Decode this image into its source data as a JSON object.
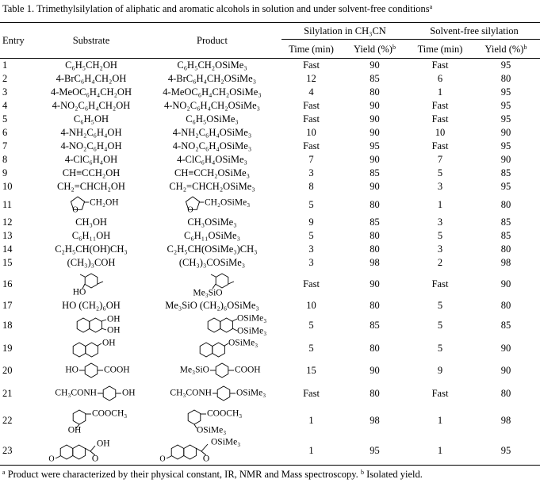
{
  "caption": {
    "text": "Table 1.  Trimethylsilylation of aliphatic and aromatic alcohols in solution and under solvent-free conditions",
    "sup": "a"
  },
  "columns": {
    "entry": "Entry",
    "substrate": "Substrate",
    "product": "Product",
    "group1": {
      "title": "Silylation in CH₃CN",
      "time": "Time (min)",
      "yield": "Yield (%)",
      "yield_sup": "b"
    },
    "group2": {
      "title": "Solvent-free silylation",
      "time": "Time (min)",
      "yield": "Yield (%)",
      "yield_sup": "b"
    }
  },
  "rows": [
    [
      1,
      "C₆H₅CH₂OH",
      "C₆H₅CH₂OSiMe₃",
      "Fast",
      90,
      "Fast",
      95
    ],
    [
      2,
      "4-BrC₆H₄CH₂OH",
      "4-BrC₆H₄CH₂OSiMe₃",
      12,
      85,
      6,
      80
    ],
    [
      3,
      "4-MeOC₆H₄CH₂OH",
      "4-MeOC₆H₄CH₂OSiMe₃",
      4,
      80,
      1,
      95
    ],
    [
      4,
      "4-NO₂C₆H₄CH₂OH",
      "4-NO₂C₆H₄CH₂OSiMe₃",
      "Fast",
      90,
      "Fast",
      95
    ],
    [
      5,
      "C₆H₅OH",
      "C₆H₅OSiMe₃",
      "Fast",
      90,
      "Fast",
      95
    ],
    [
      6,
      "4-NH₂C₆H₄OH",
      "4-NH₂C₆H₄OSiMe₃",
      10,
      90,
      10,
      90
    ],
    [
      7,
      "4-NO₂C₆H₄OH",
      "4-NO₂C₆H₄OSiMe₃",
      "Fast",
      95,
      "Fast",
      95
    ],
    [
      8,
      "4-ClC₆H₄OH",
      "4-ClC₆H₄OSiMe₃",
      7,
      90,
      7,
      90
    ],
    [
      9,
      "CH≡CCH₂OH",
      "CH≡CCH₂OSiMe₃",
      3,
      85,
      5,
      85
    ],
    [
      10,
      "CH₂=CHCH₂OH",
      "CH₂=CHCH₂OSiMe₃",
      8,
      90,
      3,
      95
    ],
    [
      11,
      [
        "O",
        "CH₂OH"
      ],
      [
        "O",
        "CH₂OSiMe₃"
      ],
      5,
      80,
      1,
      80
    ],
    [
      12,
      "CH₃OH",
      "CH₃OSiMe₃",
      9,
      85,
      3,
      85
    ],
    [
      13,
      "C₆H₁₁OH",
      "C₆H₁₁OSiMe₃",
      5,
      80,
      5,
      85
    ],
    [
      14,
      "C₂H₅CH(OH)CH₃",
      "C₂H₅CH(OSiMe₃)CH₃",
      3,
      80,
      3,
      80
    ],
    [
      15,
      "(CH₃)₃COH",
      "(CH₃)₃COSiMe₃",
      3,
      98,
      2,
      98
    ],
    [
      16,
      [
        "HO"
      ],
      [
        "Me₃SiO"
      ],
      "Fast",
      90,
      "Fast",
      90
    ],
    [
      17,
      "HO (CH₂)₆OH",
      "Me₃SiO (CH₂)₆OSiMe₃",
      10,
      80,
      5,
      80
    ],
    [
      18,
      [
        "OH",
        "OH"
      ],
      [
        "OSiMe₃",
        "OSiMe₃"
      ],
      5,
      85,
      5,
      85
    ],
    [
      19,
      [
        "OH"
      ],
      [
        "OSiMe₃"
      ],
      5,
      80,
      5,
      90
    ],
    [
      20,
      [
        "HO",
        "COOH"
      ],
      [
        "Me₃SiO",
        "COOH"
      ],
      15,
      90,
      9,
      90
    ],
    [
      21,
      [
        "CH₃CONH",
        "OH"
      ],
      [
        "CH₃CONH",
        "OSiMe₃"
      ],
      "Fast",
      80,
      "Fast",
      80
    ],
    [
      22,
      [
        "COOCH₃",
        "OH"
      ],
      [
        "COOCH₃",
        "OSiMe₃"
      ],
      1,
      98,
      1,
      98
    ],
    [
      23,
      [
        "O",
        "OH",
        "O"
      ],
      [
        "O",
        "OSiMe₃",
        "O"
      ],
      1,
      95,
      1,
      95
    ]
  ],
  "footnotes": [
    {
      "sup": "a",
      "text": " Product were characterized by their physical constant, IR, NMR and Mass  spectroscopy. "
    },
    {
      "sup": "b",
      "text": " Isolated yield."
    }
  ]
}
